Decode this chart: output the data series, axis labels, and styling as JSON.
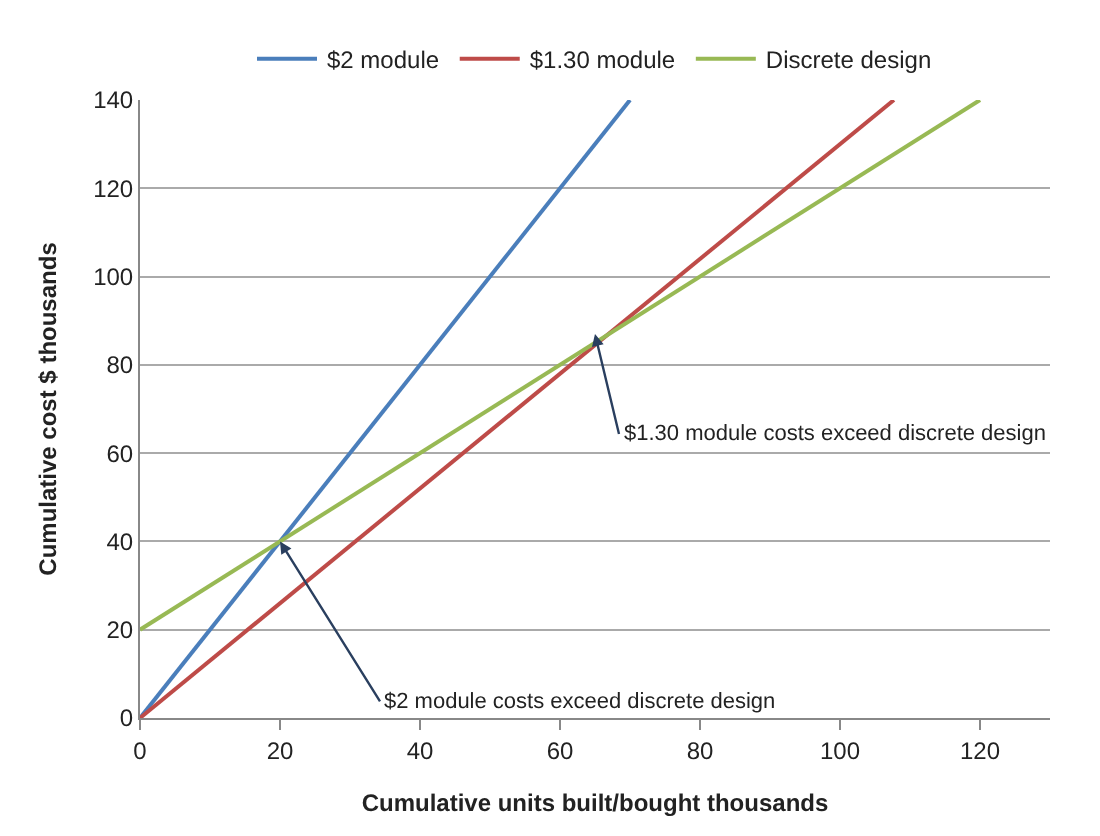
{
  "chart_data": {
    "type": "line",
    "xlabel": "Cumulative units built/bought thousands",
    "ylabel": "Cumulative cost $ thousands",
    "series": [
      {
        "name": "$2 module",
        "color": "#4a7ebb",
        "x": [
          0,
          70
        ],
        "values": [
          0,
          140
        ]
      },
      {
        "name": "$1.30 module",
        "color": "#be4b48",
        "x": [
          0,
          107.7
        ],
        "values": [
          0,
          140
        ]
      },
      {
        "name": "Discrete design",
        "color": "#98b954",
        "x": [
          0,
          120
        ],
        "values": [
          20,
          140
        ]
      }
    ],
    "xlim": [
      0,
      130
    ],
    "xticks": [
      0,
      20,
      40,
      60,
      80,
      100,
      120
    ],
    "ylim": [
      0,
      140
    ],
    "yticks": [
      0,
      20,
      40,
      60,
      80,
      100,
      120,
      140
    ],
    "grid": "y",
    "legend": "top",
    "marker": "none",
    "line_style": "solid",
    "annotations": [
      {
        "text": "$2 module costs exceed discrete design",
        "x": 20,
        "y": 40
      },
      {
        "text": "$1.30 module costs exceed discrete design",
        "x": 65,
        "y": 87
      }
    ]
  }
}
